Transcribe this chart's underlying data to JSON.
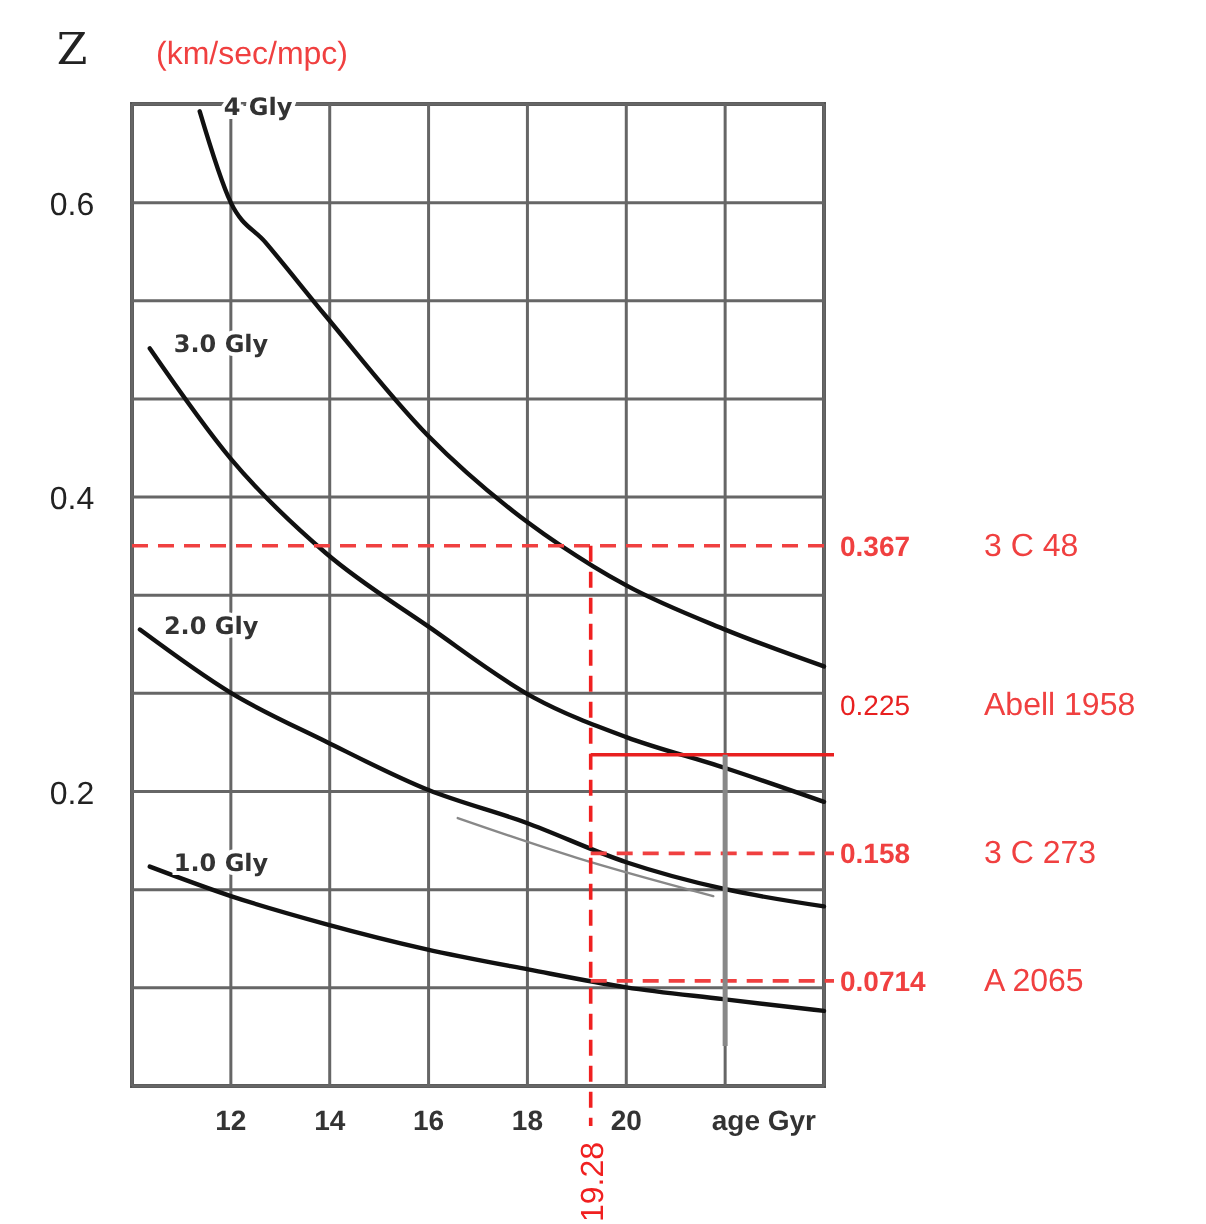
{
  "chart_data": {
    "type": "line",
    "ylabel": "Z",
    "xlabel": "age Gyr",
    "xlim": [
      10,
      24
    ],
    "xticks": [
      {
        "value": 10,
        "label": null
      },
      12,
      14,
      16,
      18,
      20,
      {
        "value": 22,
        "label": null
      },
      {
        "value": 24,
        "label": null
      }
    ],
    "ylim": [
      0,
      0.667
    ],
    "yticks": [
      {
        "value": 0,
        "label": null
      },
      {
        "value": 0.0667,
        "label": null
      },
      {
        "value": 0.1333,
        "label": null
      },
      0.2,
      {
        "value": 0.2667,
        "label": null
      },
      {
        "value": 0.3333,
        "label": null
      },
      0.4,
      {
        "value": 0.4667,
        "label": null
      },
      {
        "value": 0.5333,
        "label": null
      },
      0.6,
      {
        "value": 0.667,
        "label": null
      }
    ],
    "grid": true,
    "line_style": "solid",
    "marker": "none",
    "series": [
      {
        "name": "4 Gly",
        "color": "#111111",
        "x": [
          11.37,
          12,
          12.7,
          13.92,
          15.98,
          18.04,
          19.33,
          20,
          22,
          24
        ],
        "values": [
          0.662,
          0.6,
          0.573,
          0.523,
          0.442,
          0.382,
          0.353,
          0.34,
          0.31,
          0.285
        ]
      },
      {
        "name": "3.0 Gly",
        "color": "#111111",
        "x": [
          10.36,
          12,
          13.92,
          16,
          18.12,
          20,
          22,
          24
        ],
        "values": [
          0.501,
          0.426,
          0.362,
          0.312,
          0.264,
          0.237,
          0.216,
          0.193
        ]
      },
      {
        "name": "2.0 Gly",
        "color": "#111111",
        "x": [
          10.16,
          12,
          13.92,
          16,
          17.96,
          20,
          21.96,
          24
        ],
        "values": [
          0.31,
          0.267,
          0.234,
          0.201,
          0.179,
          0.152,
          0.134,
          0.122
        ]
      },
      {
        "name": "1.0 Gly",
        "color": "#111111",
        "x": [
          10.36,
          12,
          13.92,
          15.94,
          18.04,
          20,
          21.96,
          24
        ],
        "values": [
          0.149,
          0.129,
          0.11,
          0.093,
          0.079,
          0.067,
          0.059,
          0.051
        ]
      },
      {
        "color": "#888888",
        "x": [
          16.59,
          19,
          21.76
        ],
        "values": [
          0.182,
          0.155,
          0.129
        ]
      }
    ],
    "ref_lines": [
      {
        "axis": "y",
        "value": 0.367,
        "label": "0.367",
        "color": "#f04040",
        "line_style": "dashed"
      },
      {
        "axis": "y",
        "value": 0.225,
        "label": "0.225",
        "color": "#e82020",
        "line_style": "solid"
      },
      {
        "axis": "y",
        "value": 0.158,
        "label": "0.158",
        "color": "#f04040",
        "line_style": "dashed"
      },
      {
        "axis": "y",
        "value": 0.0714,
        "label": "0.0714",
        "color": "#f04040",
        "line_style": "dashed"
      },
      {
        "axis": "x",
        "value": 19.28,
        "label": "19.28",
        "color": "#f02020",
        "line_style": "dashed"
      },
      {
        "axis": "x",
        "value": 22,
        "color": "#888888",
        "line_style": "solid"
      }
    ],
    "annotations": [
      "(km/sec/mpc)",
      "3 C 48",
      "Abell 1958",
      "3 C 273",
      "A 2065"
    ]
  }
}
